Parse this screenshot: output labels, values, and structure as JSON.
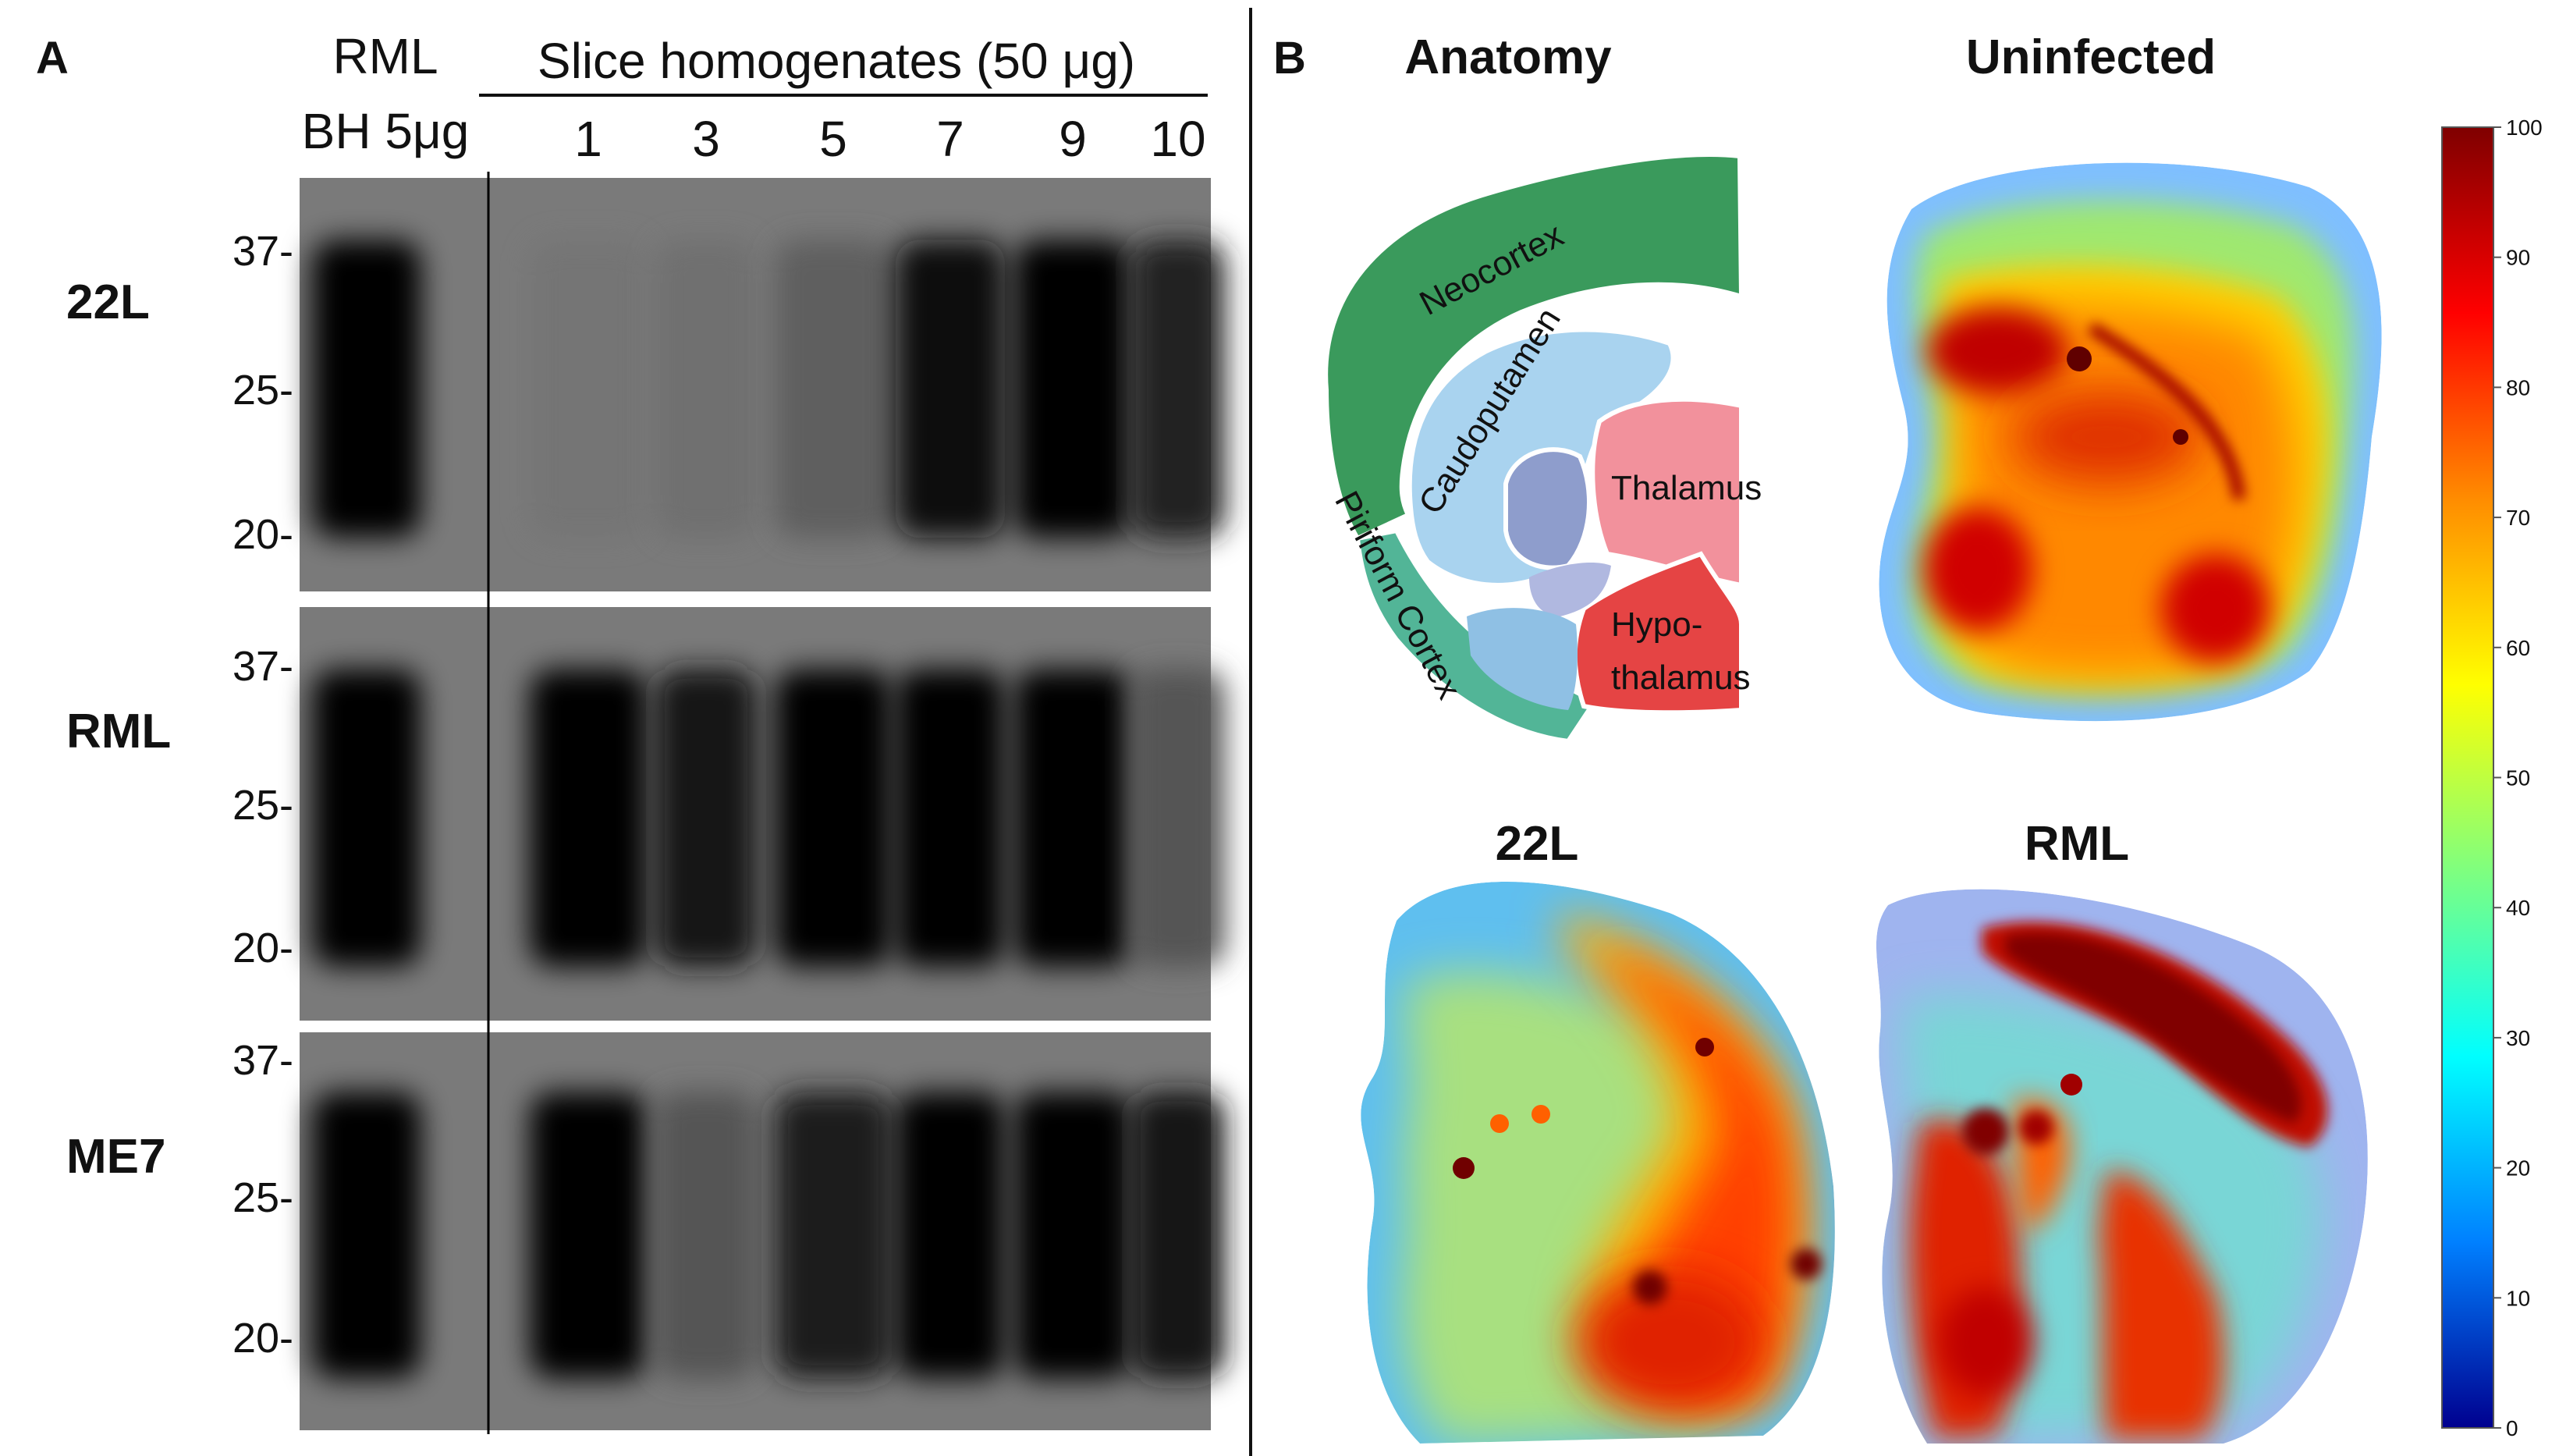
{
  "panel_a": {
    "letter": "A",
    "control_header": [
      "RML",
      "BH 5μg"
    ],
    "slice_header": "Slice homogenates (50 μg)",
    "lanes": [
      "1",
      "3",
      "5",
      "7",
      "9",
      "10"
    ],
    "blots": [
      {
        "label": "22L",
        "markers": [
          "37-",
          "25-",
          "20-"
        ],
        "lane_intensity": [
          1.0,
          0.04,
          0.08,
          0.22,
          0.92,
          1.0,
          0.72
        ]
      },
      {
        "label": "RML",
        "markers": [
          "37-",
          "25-",
          "20-"
        ],
        "lane_intensity": [
          1.0,
          1.0,
          0.85,
          0.98,
          1.0,
          0.95,
          0.3
        ]
      },
      {
        "label": "ME7",
        "markers": [
          "37-",
          "25-",
          "20-"
        ],
        "lane_intensity": [
          1.0,
          1.0,
          0.3,
          0.75,
          1.0,
          1.0,
          0.8
        ]
      }
    ]
  },
  "panel_b": {
    "letter": "B",
    "titles": {
      "anatomy": "Anatomy",
      "uninfected": "Uninfected",
      "s22l": "22L",
      "rml": "RML"
    },
    "regions": {
      "neocortex": "Neocortex",
      "caudoputamen": "Caudoputamen",
      "thalamus": "Thalamus",
      "hypo1": "Hypo-",
      "hypo2": "thalamus",
      "piriform": "Piriform Cortex"
    },
    "region_colors": {
      "neocortex": "#3a9a5c",
      "caudoputamen": "#a9d3ef",
      "thalamus": "#f2919c",
      "hypothalamus": "#e54444",
      "piriform": "#52b597",
      "striatum_core": "#8e9dcc"
    },
    "colorbar": {
      "ticks": [
        "100",
        "90",
        "80",
        "70",
        "60",
        "50",
        "40",
        "30",
        "20",
        "10",
        "0"
      ],
      "stops": [
        "#7f0000",
        "#ff0000",
        "#ff8c00",
        "#ffff00",
        "#7fff7f",
        "#00ffff",
        "#0080ff",
        "#00008f"
      ]
    }
  }
}
